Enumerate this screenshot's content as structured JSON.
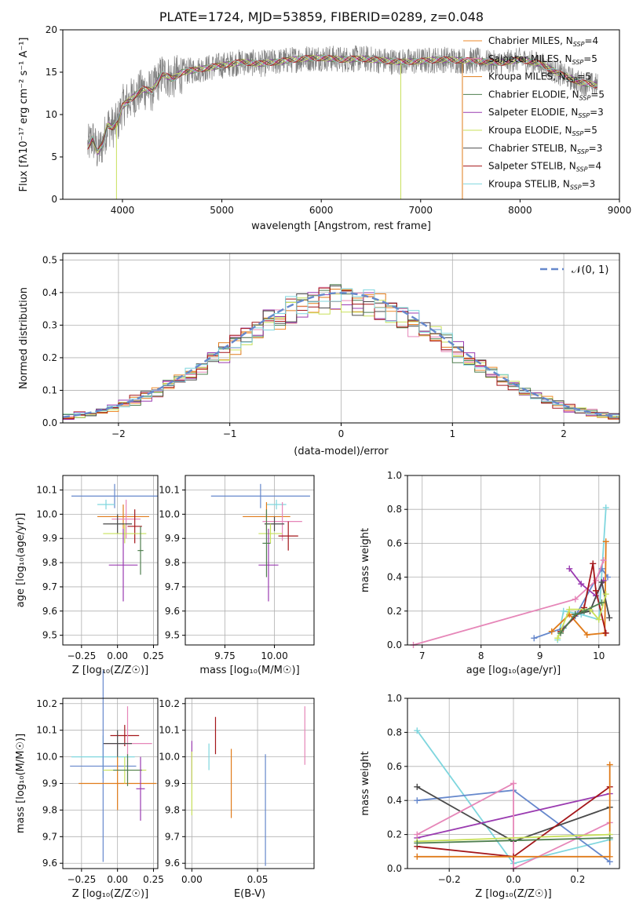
{
  "title": "PLATE=1724, MJD=53859, FIBERID=0289, z=0.048",
  "models": [
    {
      "name": "Chabrier MILES",
      "n": "4",
      "color": "#ee8a2a"
    },
    {
      "name": "Salpeter MILES",
      "n": "5",
      "color": "#e686b8"
    },
    {
      "name": "Kroupa MILES",
      "n": "5",
      "color": "#e07b1a"
    },
    {
      "name": "Chabrier ELODIE",
      "n": "5",
      "color": "#4f7f4f"
    },
    {
      "name": "Salpeter ELODIE",
      "n": "3",
      "color": "#9a3bb0"
    },
    {
      "name": "Kroupa ELODIE",
      "n": "5",
      "color": "#c8e05a"
    },
    {
      "name": "Chabrier STELIB",
      "n": "3",
      "color": "#4a4a4a"
    },
    {
      "name": "Salpeter STELIB",
      "n": "4",
      "color": "#a4161a"
    },
    {
      "name": "Kroupa STELIB",
      "n": "3",
      "color": "#7fd6de"
    }
  ],
  "legend_n_label": "N",
  "legend_n_sub": "SSP",
  "chart_data": [
    {
      "type": "line",
      "xlabel": "wavelength [Angstrom, rest frame]",
      "ylabel": "Flux [fλ10⁻¹⁷ erg cm⁻² s⁻¹ A⁻¹]",
      "xlim": [
        3400,
        9000
      ],
      "ylim": [
        0,
        20
      ],
      "xticks": [
        "4000",
        "5000",
        "6000",
        "7000",
        "8000",
        "9000"
      ],
      "yticks": [
        "0",
        "5",
        "10",
        "15",
        "20"
      ],
      "spectrum_x": [
        3650,
        3700,
        3750,
        3800,
        3850,
        3900,
        3950,
        4000,
        4100,
        4200,
        4300,
        4400,
        4500,
        4600,
        4800,
        5000,
        5200,
        5400,
        5600,
        5800,
        6000,
        6200,
        6400,
        6600,
        6800,
        7000,
        7200,
        7400,
        7600,
        7800,
        8000,
        8200,
        8400,
        8600,
        8750
      ],
      "spectrum_y": [
        6.2,
        7.2,
        5.5,
        6.5,
        8.8,
        8.5,
        9.0,
        11.0,
        12.0,
        13.0,
        12.8,
        14.8,
        14.2,
        15.0,
        15.4,
        15.8,
        16.2,
        16.0,
        16.3,
        16.6,
        16.7,
        16.5,
        16.6,
        16.4,
        16.2,
        16.3,
        16.5,
        16.4,
        16.3,
        16.1,
        16.5,
        16.0,
        14.8,
        13.8,
        13.5
      ],
      "noise_amp": 1.6,
      "legend": "top-right",
      "grid": false
    },
    {
      "type": "histogram",
      "xlabel": "(data-model)/error",
      "ylabel": "Normed distribution",
      "xlim": [
        -2.5,
        2.5
      ],
      "ylim": [
        0,
        0.52
      ],
      "xticks": [
        "−2",
        "−1",
        "0",
        "1",
        "2"
      ],
      "yticks": [
        "0.0",
        "0.1",
        "0.2",
        "0.3",
        "0.4",
        "0.5"
      ],
      "reference_label": "𝒩(0, 1)",
      "reference_color": "#6688cc",
      "bin_width": 0.1,
      "legend": "top-right",
      "grid": true
    },
    {
      "type": "scatter",
      "xlabel": "Z [log₁₀(Z/Z☉)]",
      "ylabel": "age  [log₁₀(age/yr)]",
      "xlim": [
        -0.38,
        0.28
      ],
      "ylim": [
        9.46,
        10.16
      ],
      "xticks": [
        -0.25,
        0.0,
        0.25
      ],
      "xtick_labels": [
        "−0.25",
        "0.00",
        "0.25"
      ],
      "yticks": [
        9.5,
        9.6,
        9.7,
        9.8,
        9.9,
        10.0,
        10.1
      ],
      "ytick_labels": [
        "9.5",
        "9.6",
        "9.7",
        "9.8",
        "9.9",
        "10.0",
        "10.1"
      ],
      "points": [
        {
          "x": -0.02,
          "y": 10.075,
          "xe": 0.3,
          "ye": 0.05,
          "c": "#6688cc"
        },
        {
          "x": -0.08,
          "y": 10.04,
          "xe": 0.06,
          "ye": 0.02,
          "c": "#7fd6de"
        },
        {
          "x": 0.04,
          "y": 9.99,
          "xe": 0.18,
          "ye": 0.05,
          "c": "#e07b1a"
        },
        {
          "x": 0.06,
          "y": 9.98,
          "xe": 0.1,
          "ye": 0.08,
          "c": "#e686b8"
        },
        {
          "x": 0.0,
          "y": 9.96,
          "xe": 0.1,
          "ye": 0.04,
          "c": "#4a4a4a"
        },
        {
          "x": 0.12,
          "y": 9.95,
          "xe": 0.05,
          "ye": 0.07,
          "c": "#a4161a"
        },
        {
          "x": 0.05,
          "y": 9.92,
          "xe": 0.15,
          "ye": 0.04,
          "c": "#c8e05a"
        },
        {
          "x": 0.04,
          "y": 9.79,
          "xe": 0.1,
          "ye": 0.15,
          "c": "#9a3bb0"
        },
        {
          "x": 0.16,
          "y": 9.85,
          "xe": 0.02,
          "ye": 0.1,
          "c": "#4f7f4f"
        }
      ],
      "grid": true
    },
    {
      "type": "scatter",
      "xlabel": "mass [log₁₀(M/M☉)]",
      "ylabel": "",
      "xlim": [
        9.55,
        10.2
      ],
      "ylim": [
        9.46,
        10.16
      ],
      "xticks": [
        9.75,
        10.0
      ],
      "xtick_labels": [
        "9.75",
        "10.00"
      ],
      "yticks": [
        9.5,
        9.6,
        9.7,
        9.8,
        9.9,
        10.0,
        10.1
      ],
      "ytick_labels": [
        "9.5",
        "9.6",
        "9.7",
        "9.8",
        "9.9",
        "10.0",
        "10.1"
      ],
      "points": [
        {
          "x": 9.93,
          "y": 10.075,
          "xe": 0.25,
          "ye": 0.05,
          "c": "#6688cc"
        },
        {
          "x": 10.01,
          "y": 10.04,
          "xe": 0.05,
          "ye": 0.02,
          "c": "#7fd6de"
        },
        {
          "x": 9.96,
          "y": 9.99,
          "xe": 0.12,
          "ye": 0.06,
          "c": "#e07b1a"
        },
        {
          "x": 10.04,
          "y": 9.97,
          "xe": 0.1,
          "ye": 0.08,
          "c": "#e686b8"
        },
        {
          "x": 10.0,
          "y": 9.96,
          "xe": 0.05,
          "ye": 0.03,
          "c": "#4a4a4a"
        },
        {
          "x": 10.07,
          "y": 9.91,
          "xe": 0.05,
          "ye": 0.06,
          "c": "#a4161a"
        },
        {
          "x": 9.98,
          "y": 9.92,
          "xe": 0.06,
          "ye": 0.04,
          "c": "#c8e05a"
        },
        {
          "x": 9.97,
          "y": 9.79,
          "xe": 0.05,
          "ye": 0.15,
          "c": "#9a3bb0"
        },
        {
          "x": 9.96,
          "y": 9.88,
          "xe": 0.02,
          "ye": 0.14,
          "c": "#4f7f4f"
        }
      ],
      "grid": true
    },
    {
      "type": "line",
      "xlabel": "age  [log₁₀(age/yr)]",
      "ylabel": "mass weight",
      "xlim": [
        6.75,
        10.35
      ],
      "ylim": [
        0,
        1.0
      ],
      "xticks": [
        7,
        8,
        9,
        10
      ],
      "xtick_labels": [
        "7",
        "8",
        "9",
        "10"
      ],
      "yticks": [
        0,
        0.2,
        0.4,
        0.6,
        0.8,
        1.0
      ],
      "ytick_labels": [
        "0.0",
        "0.2",
        "0.4",
        "0.6",
        "0.8",
        "1.0"
      ],
      "series": [
        {
          "c": "#7fd6de",
          "x": [
            9.3,
            9.4,
            9.7,
            10.0,
            10.12
          ],
          "y": [
            0.03,
            0.2,
            0.18,
            0.15,
            0.81
          ]
        },
        {
          "c": "#6688cc",
          "x": [
            8.9,
            9.4,
            9.6,
            10.05,
            10.15
          ],
          "y": [
            0.04,
            0.1,
            0.17,
            0.45,
            0.4
          ]
        },
        {
          "c": "#e07b1a",
          "x": [
            9.2,
            9.5,
            9.8,
            10.1,
            10.12
          ],
          "y": [
            0.08,
            0.18,
            0.06,
            0.07,
            0.61
          ]
        },
        {
          "c": "#e686b8",
          "x": [
            6.85,
            9.6,
            9.95,
            10.08
          ],
          "y": [
            0.0,
            0.27,
            0.38,
            0.5
          ]
        },
        {
          "c": "#9a3bb0",
          "x": [
            9.5,
            9.7,
            9.95,
            10.08
          ],
          "y": [
            0.45,
            0.36,
            0.29,
            0.38
          ]
        },
        {
          "c": "#4a4a4a",
          "x": [
            9.6,
            9.85,
            10.05,
            10.18
          ],
          "y": [
            0.18,
            0.2,
            0.37,
            0.16
          ]
        },
        {
          "c": "#a4161a",
          "x": [
            9.35,
            9.75,
            9.9,
            9.95,
            10.12
          ],
          "y": [
            0.08,
            0.22,
            0.48,
            0.32,
            0.07
          ]
        },
        {
          "c": "#c8e05a",
          "x": [
            9.3,
            9.5,
            9.85,
            10.0,
            10.12
          ],
          "y": [
            0.04,
            0.21,
            0.21,
            0.15,
            0.3
          ]
        },
        {
          "c": "#4f7f4f",
          "x": [
            9.35,
            9.6,
            9.75,
            10.05
          ],
          "y": [
            0.07,
            0.18,
            0.2,
            0.25
          ]
        }
      ],
      "grid": true
    },
    {
      "type": "scatter",
      "xlabel": "Z [log₁₀(Z/Z☉)]",
      "ylabel": "mass [log₁₀(M/M☉)]",
      "xlim": [
        -0.38,
        0.28
      ],
      "ylim": [
        9.58,
        10.22
      ],
      "xticks": [
        -0.25,
        0.0,
        0.25
      ],
      "xtick_labels": [
        "−0.25",
        "0.00",
        "0.25"
      ],
      "yticks": [
        9.6,
        9.7,
        9.8,
        9.9,
        10.0,
        10.1,
        10.2
      ],
      "ytick_labels": [
        "9.6",
        "9.7",
        "9.8",
        "9.9",
        "10.0",
        "10.1",
        "10.2"
      ],
      "points": [
        {
          "x": -0.1,
          "y": 10.0,
          "xe": 0.22,
          "ye": 0.08,
          "c": "#7fd6de"
        },
        {
          "x": 0.05,
          "y": 10.08,
          "xe": 0.1,
          "ye": 0.04,
          "c": "#a4161a"
        },
        {
          "x": 0.07,
          "y": 10.05,
          "xe": 0.17,
          "ye": 0.14,
          "c": "#e686b8"
        },
        {
          "x": 0.0,
          "y": 10.05,
          "xe": 0.1,
          "ye": 0.05,
          "c": "#4a4a4a"
        },
        {
          "x": -0.1,
          "y": 9.965,
          "xe": 0.23,
          "ye": 0.36,
          "c": "#6688cc"
        },
        {
          "x": 0.0,
          "y": 9.9,
          "xe": 0.27,
          "ye": 0.1,
          "c": "#e07b1a"
        },
        {
          "x": 0.05,
          "y": 9.95,
          "xe": 0.15,
          "ye": 0.05,
          "c": "#c8e05a"
        },
        {
          "x": 0.07,
          "y": 9.95,
          "xe": 0.1,
          "ye": 0.06,
          "c": "#4f7f4f"
        },
        {
          "x": 0.16,
          "y": 9.88,
          "xe": 0.03,
          "ye": 0.12,
          "c": "#9a3bb0"
        }
      ],
      "grid": true
    },
    {
      "type": "scatter",
      "xlabel": "E(B-V)",
      "ylabel": "",
      "xlim": [
        -0.005,
        0.093
      ],
      "ylim": [
        9.58,
        10.22
      ],
      "xticks": [
        0.0,
        0.05
      ],
      "xtick_labels": [
        "0.00",
        "0.05"
      ],
      "yticks": [
        9.6,
        9.7,
        9.8,
        9.9,
        10.0,
        10.1,
        10.2
      ],
      "ytick_labels": [
        "9.6",
        "9.7",
        "9.8",
        "9.9",
        "10.0",
        "10.1",
        "10.2"
      ],
      "points": [
        {
          "x": 0.0,
          "y": 9.98,
          "xe": 0,
          "ye": 0.08,
          "c": "#9a3bb0"
        },
        {
          "x": 0.0,
          "y": 9.9,
          "xe": 0,
          "ye": 0.12,
          "c": "#c8e05a"
        },
        {
          "x": 0.013,
          "y": 10.0,
          "xe": 0,
          "ye": 0.05,
          "c": "#7fd6de"
        },
        {
          "x": 0.018,
          "y": 10.08,
          "xe": 0,
          "ye": 0.07,
          "c": "#a4161a"
        },
        {
          "x": 0.03,
          "y": 9.9,
          "xe": 0,
          "ye": 0.13,
          "c": "#e07b1a"
        },
        {
          "x": 0.056,
          "y": 9.8,
          "xe": 0,
          "ye": 0.21,
          "c": "#6688cc"
        },
        {
          "x": 0.086,
          "y": 10.08,
          "xe": 0,
          "ye": 0.11,
          "c": "#e686b8"
        }
      ],
      "grid": true
    },
    {
      "type": "line",
      "xlabel": "Z [log₁₀(Z/Z☉)]",
      "ylabel": "mass weight",
      "xlim": [
        -0.33,
        0.33
      ],
      "ylim": [
        0,
        1.0
      ],
      "xticks": [
        -0.2,
        0.0,
        0.2
      ],
      "xtick_labels": [
        "−0.2",
        "0.0",
        "0.2"
      ],
      "yticks": [
        0,
        0.2,
        0.4,
        0.6,
        0.8,
        1.0
      ],
      "ytick_labels": [
        "0.0",
        "0.2",
        "0.4",
        "0.6",
        "0.8",
        "1.0"
      ],
      "series": [
        {
          "c": "#7fd6de",
          "x": [
            -0.3,
            0.0,
            0.3
          ],
          "y": [
            0.81,
            0.03,
            0.17
          ]
        },
        {
          "c": "#6688cc",
          "x": [
            -0.3,
            0.0,
            0.3
          ],
          "y": [
            0.4,
            0.46,
            0.04
          ]
        },
        {
          "c": "#4a4a4a",
          "x": [
            -0.3,
            0.0,
            0.3
          ],
          "y": [
            0.48,
            0.16,
            0.36
          ]
        },
        {
          "c": "#9a3bb0",
          "x": [
            -0.3,
            0.3
          ],
          "y": [
            0.18,
            0.44
          ]
        },
        {
          "c": "#e686b8",
          "x": [
            -0.3,
            0.0,
            0.0,
            0.3
          ],
          "y": [
            0.2,
            0.5,
            0.0,
            0.27
          ]
        },
        {
          "c": "#a4161a",
          "x": [
            -0.3,
            0.0,
            0.3
          ],
          "y": [
            0.13,
            0.07,
            0.48
          ]
        },
        {
          "c": "#e07b1a",
          "x": [
            -0.3,
            0.3,
            0.3
          ],
          "y": [
            0.07,
            0.07,
            0.61
          ]
        },
        {
          "c": "#c8e05a",
          "x": [
            -0.3,
            0.3
          ],
          "y": [
            0.16,
            0.2
          ]
        },
        {
          "c": "#4f7f4f",
          "x": [
            -0.3,
            0.3
          ],
          "y": [
            0.15,
            0.18
          ]
        }
      ],
      "grid": true
    }
  ]
}
